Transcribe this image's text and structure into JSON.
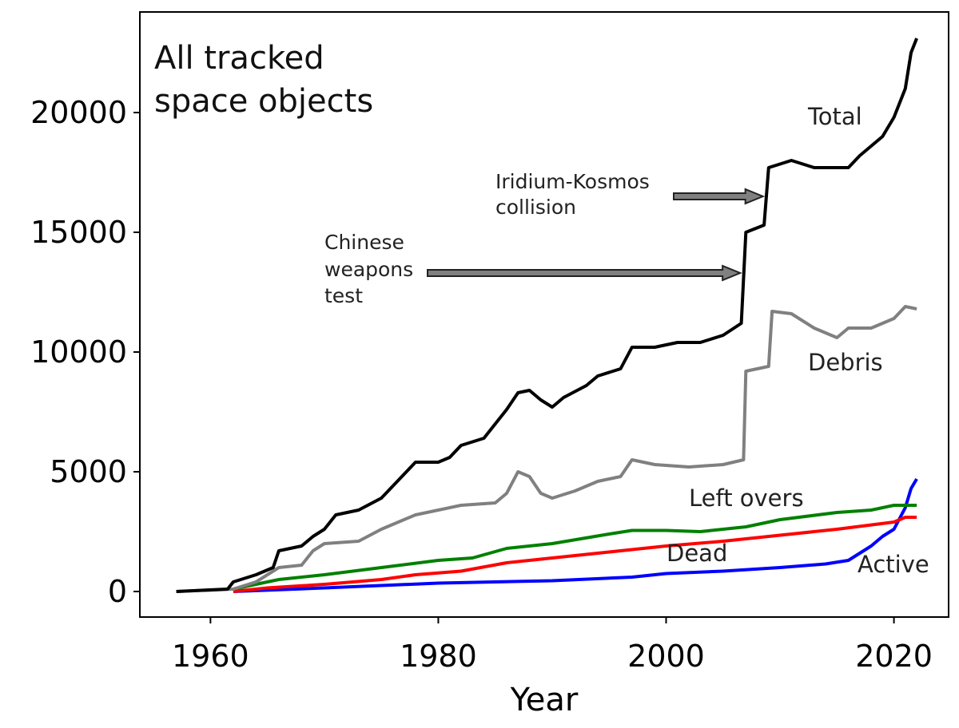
{
  "chart_data": {
    "type": "line",
    "title_lines": [
      "All tracked",
      "space objects"
    ],
    "xlabel": "Year",
    "ylabel": "",
    "xlim": [
      1953.8,
      2024.8
    ],
    "ylim": [
      -1067,
      24200
    ],
    "xticks": [
      1960,
      1980,
      2000,
      2020
    ],
    "yticks": [
      0,
      5000,
      10000,
      15000,
      20000
    ],
    "xtick_labels": [
      "1960",
      "1980",
      "2000",
      "2020"
    ],
    "ytick_labels": [
      "0",
      "5000",
      "10000",
      "15000",
      "20000"
    ],
    "grid": false,
    "legend": "none (inline labels)",
    "series": [
      {
        "name": "Total",
        "color": "#000000",
        "points": [
          [
            1957,
            0
          ],
          [
            1961.5,
            100
          ],
          [
            1962,
            400
          ],
          [
            1964,
            700
          ],
          [
            1965.5,
            1000
          ],
          [
            1966,
            1700
          ],
          [
            1968,
            1900
          ],
          [
            1969,
            2300
          ],
          [
            1970,
            2600
          ],
          [
            1971,
            3200
          ],
          [
            1973,
            3400
          ],
          [
            1975,
            3900
          ],
          [
            1977,
            4900
          ],
          [
            1978,
            5400
          ],
          [
            1980,
            5400
          ],
          [
            1981,
            5600
          ],
          [
            1982,
            6100
          ],
          [
            1984,
            6400
          ],
          [
            1986,
            7600
          ],
          [
            1987,
            8300
          ],
          [
            1988,
            8400
          ],
          [
            1989,
            8000
          ],
          [
            1990,
            7700
          ],
          [
            1991,
            8100
          ],
          [
            1993,
            8600
          ],
          [
            1994,
            9000
          ],
          [
            1996,
            9300
          ],
          [
            1997,
            10200
          ],
          [
            1999,
            10200
          ],
          [
            2001,
            10400
          ],
          [
            2003,
            10400
          ],
          [
            2005,
            10700
          ],
          [
            2006.6,
            11200
          ],
          [
            2007,
            15000
          ],
          [
            2008.6,
            15300
          ],
          [
            2009,
            17700
          ],
          [
            2011,
            18000
          ],
          [
            2013,
            17700
          ],
          [
            2016,
            17700
          ],
          [
            2017,
            18200
          ],
          [
            2019,
            19000
          ],
          [
            2020,
            19800
          ],
          [
            2021,
            21000
          ],
          [
            2021.5,
            22500
          ],
          [
            2022,
            23100
          ]
        ]
      },
      {
        "name": "Debris",
        "color": "#808080",
        "points": [
          [
            1957,
            0
          ],
          [
            1962,
            100
          ],
          [
            1964,
            400
          ],
          [
            1965,
            700
          ],
          [
            1966,
            1000
          ],
          [
            1968,
            1100
          ],
          [
            1969,
            1700
          ],
          [
            1970,
            2000
          ],
          [
            1973,
            2100
          ],
          [
            1975,
            2600
          ],
          [
            1976,
            2800
          ],
          [
            1978,
            3200
          ],
          [
            1980,
            3400
          ],
          [
            1982,
            3600
          ],
          [
            1985,
            3700
          ],
          [
            1986,
            4100
          ],
          [
            1987,
            5000
          ],
          [
            1988,
            4800
          ],
          [
            1989,
            4100
          ],
          [
            1990,
            3900
          ],
          [
            1992,
            4200
          ],
          [
            1994,
            4600
          ],
          [
            1996,
            4800
          ],
          [
            1997,
            5500
          ],
          [
            1999,
            5300
          ],
          [
            2002,
            5200
          ],
          [
            2005,
            5300
          ],
          [
            2006.8,
            5500
          ],
          [
            2007,
            9200
          ],
          [
            2009,
            9400
          ],
          [
            2009.3,
            11700
          ],
          [
            2011,
            11600
          ],
          [
            2013,
            11000
          ],
          [
            2015,
            10600
          ],
          [
            2016,
            11000
          ],
          [
            2018,
            11000
          ],
          [
            2020,
            11400
          ],
          [
            2021,
            11900
          ],
          [
            2022,
            11800
          ]
        ]
      },
      {
        "name": "Left overs",
        "color": "#008000",
        "points": [
          [
            1962,
            100
          ],
          [
            1965,
            400
          ],
          [
            1966,
            500
          ],
          [
            1970,
            700
          ],
          [
            1975,
            1000
          ],
          [
            1980,
            1300
          ],
          [
            1983,
            1400
          ],
          [
            1986,
            1800
          ],
          [
            1990,
            2000
          ],
          [
            1995,
            2400
          ],
          [
            1997,
            2550
          ],
          [
            2000,
            2550
          ],
          [
            2003,
            2500
          ],
          [
            2007,
            2700
          ],
          [
            2010,
            3000
          ],
          [
            2015,
            3300
          ],
          [
            2018,
            3400
          ],
          [
            2020,
            3600
          ],
          [
            2022,
            3600
          ]
        ]
      },
      {
        "name": "Dead",
        "color": "#ff0000",
        "points": [
          [
            1962,
            0
          ],
          [
            1965,
            150
          ],
          [
            1970,
            300
          ],
          [
            1975,
            500
          ],
          [
            1978,
            700
          ],
          [
            1982,
            850
          ],
          [
            1986,
            1200
          ],
          [
            1990,
            1400
          ],
          [
            1995,
            1650
          ],
          [
            2000,
            1900
          ],
          [
            2005,
            2100
          ],
          [
            2010,
            2350
          ],
          [
            2015,
            2600
          ],
          [
            2020,
            2900
          ],
          [
            2021,
            3100
          ],
          [
            2022,
            3100
          ]
        ]
      },
      {
        "name": "Active",
        "color": "#0000ff",
        "points": [
          [
            1962,
            0
          ],
          [
            1970,
            150
          ],
          [
            1980,
            350
          ],
          [
            1990,
            450
          ],
          [
            1997,
            600
          ],
          [
            2000,
            750
          ],
          [
            2005,
            850
          ],
          [
            2010,
            1000
          ],
          [
            2014,
            1150
          ],
          [
            2016,
            1300
          ],
          [
            2018,
            1900
          ],
          [
            2019,
            2300
          ],
          [
            2020,
            2600
          ],
          [
            2021,
            3500
          ],
          [
            2021.5,
            4300
          ],
          [
            2022,
            4700
          ]
        ]
      }
    ],
    "annotations": [
      {
        "text_lines": [
          "Iridium-Kosmos",
          "collision"
        ],
        "target": [
          2008.5,
          16500
        ]
      },
      {
        "text_lines": [
          "Chinese",
          "weapons",
          "test"
        ],
        "target": [
          2006.5,
          13300
        ]
      }
    ]
  }
}
